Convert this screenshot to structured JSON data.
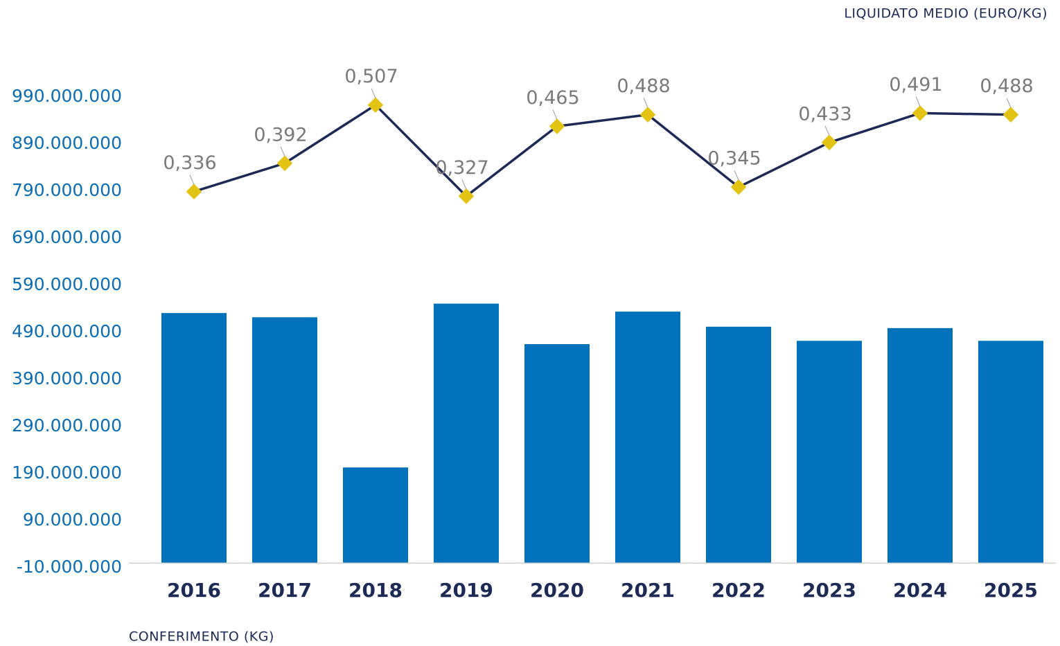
{
  "chart_data": {
    "type": "bar+line",
    "y_axis_title": "CONFERIMENTO (KG)",
    "y2_axis_title": "LIQUIDATO MEDIO (EURO/KG)",
    "categories": [
      "2016",
      "2017",
      "2018",
      "2019",
      "2020",
      "2021",
      "2022",
      "2023",
      "2024",
      "2025"
    ],
    "series": [
      {
        "name": "CONFERIMENTO (KG)",
        "type": "bar",
        "color": "#0072bb",
        "values": [
          531000000,
          522000000,
          203000000,
          551000000,
          465000000,
          534000000,
          502000000,
          472000000,
          499000000,
          472000000
        ]
      },
      {
        "name": "LIQUIDATO MEDIO (EURO/KG)",
        "type": "line",
        "axis": "y2",
        "color": "#1c2a55",
        "marker_color": "#e3c414",
        "values": [
          0.336,
          0.392,
          0.507,
          0.327,
          0.465,
          0.488,
          0.345,
          0.433,
          0.491,
          0.488
        ],
        "value_labels": [
          "0,336",
          "0,392",
          "0,507",
          "0,327",
          "0,465",
          "0,488",
          "0,345",
          "0,433",
          "0,491",
          "0,488"
        ]
      }
    ],
    "ylim": [
      -10000000,
      990000000
    ],
    "yticks": [
      {
        "value": -10000000,
        "label": "-10.000.000"
      },
      {
        "value": 90000000,
        "label": "90.000.000"
      },
      {
        "value": 190000000,
        "label": "190.000.000"
      },
      {
        "value": 290000000,
        "label": "290.000.000"
      },
      {
        "value": 390000000,
        "label": "390.000.000"
      },
      {
        "value": 490000000,
        "label": "490.000.000"
      },
      {
        "value": 590000000,
        "label": "590.000.000"
      },
      {
        "value": 690000000,
        "label": "690.000.000"
      },
      {
        "value": 790000000,
        "label": "790.000.000"
      },
      {
        "value": 890000000,
        "label": "890.000.000"
      },
      {
        "value": 990000000,
        "label": "990.000.000"
      }
    ],
    "y2lim": [
      -0.407,
      0.523
    ],
    "grid": false
  }
}
